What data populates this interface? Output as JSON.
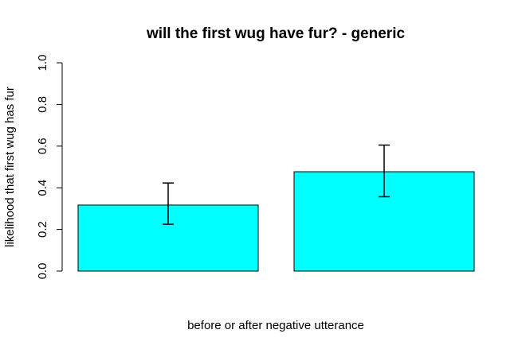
{
  "chart_data": {
    "type": "bar",
    "title": "will the first wug have fur? - generic",
    "xlabel": "before or after negative utterance",
    "ylabel": "likelihood that first wug has fur",
    "ylim": [
      0,
      1
    ],
    "yticks": [
      "0.0",
      "0.2",
      "0.4",
      "0.6",
      "0.8",
      "1.0"
    ],
    "categories": [
      "",
      ""
    ],
    "values": [
      0.317,
      0.477
    ],
    "error_low": [
      0.225,
      0.357
    ],
    "error_high": [
      0.423,
      0.605
    ],
    "bar_color": "#00FFFF",
    "grid": false,
    "legend": "none"
  }
}
